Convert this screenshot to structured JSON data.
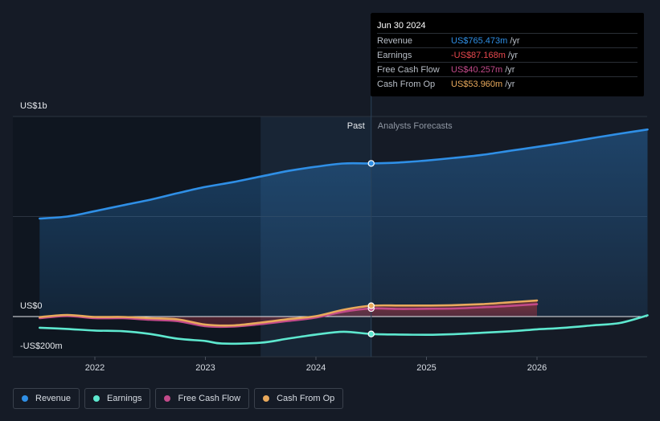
{
  "chart_data": {
    "type": "line",
    "y_tick_labels": [
      "US$1b",
      "US$0",
      "-US$200m"
    ],
    "x_tick_labels": [
      "2022",
      "2023",
      "2024",
      "2025",
      "2026"
    ],
    "regions": {
      "past_label": "Past",
      "forecast_label": "Analysts Forecasts",
      "divider_date": "Jun 30 2024"
    },
    "series": [
      {
        "name": "Revenue",
        "key": "revenue",
        "color": "#2f8fe6",
        "points": [
          [
            2021.5,
            490
          ],
          [
            2021.75,
            500
          ],
          [
            2022.0,
            527
          ],
          [
            2022.25,
            556
          ],
          [
            2022.5,
            584
          ],
          [
            2022.75,
            617
          ],
          [
            2023.0,
            648
          ],
          [
            2023.25,
            672
          ],
          [
            2023.5,
            700
          ],
          [
            2023.75,
            728
          ],
          [
            2024.0,
            749
          ],
          [
            2024.25,
            765
          ],
          [
            2024.5,
            765.473
          ],
          [
            2024.75,
            770
          ],
          [
            2025.0,
            780
          ],
          [
            2025.25,
            793
          ],
          [
            2025.5,
            808
          ],
          [
            2025.75,
            828
          ],
          [
            2026.0,
            848
          ],
          [
            2026.25,
            869
          ],
          [
            2026.5,
            892
          ],
          [
            2026.75,
            914
          ],
          [
            2027.0,
            935
          ]
        ]
      },
      {
        "name": "Earnings",
        "key": "earnings",
        "color": "#5ee8cf",
        "points": [
          [
            2021.5,
            -56
          ],
          [
            2021.75,
            -62
          ],
          [
            2022.0,
            -70
          ],
          [
            2022.25,
            -73
          ],
          [
            2022.5,
            -87
          ],
          [
            2022.75,
            -111
          ],
          [
            2023.0,
            -122
          ],
          [
            2023.15,
            -135
          ],
          [
            2023.5,
            -131
          ],
          [
            2023.75,
            -110
          ],
          [
            2024.0,
            -90
          ],
          [
            2024.25,
            -76
          ],
          [
            2024.5,
            -87.168
          ],
          [
            2024.75,
            -90
          ],
          [
            2025.0,
            -91
          ],
          [
            2025.25,
            -88
          ],
          [
            2025.5,
            -81
          ],
          [
            2025.75,
            -74
          ],
          [
            2026.0,
            -64
          ],
          [
            2026.25,
            -56
          ],
          [
            2026.5,
            -44
          ],
          [
            2026.75,
            -32
          ],
          [
            2027.0,
            6
          ]
        ]
      },
      {
        "name": "Free Cash Flow",
        "key": "fcf",
        "color": "#c24a8a",
        "points": [
          [
            2021.5,
            -8
          ],
          [
            2021.75,
            3
          ],
          [
            2022.0,
            -8
          ],
          [
            2022.25,
            -8
          ],
          [
            2022.5,
            -16
          ],
          [
            2022.75,
            -23
          ],
          [
            2023.0,
            -48
          ],
          [
            2023.25,
            -50
          ],
          [
            2023.5,
            -38
          ],
          [
            2023.75,
            -22
          ],
          [
            2024.0,
            -5
          ],
          [
            2024.25,
            24
          ],
          [
            2024.5,
            40.257
          ],
          [
            2024.75,
            38
          ],
          [
            2025.0,
            39
          ],
          [
            2025.25,
            40
          ],
          [
            2025.5,
            46
          ],
          [
            2025.75,
            53
          ],
          [
            2026.0,
            62
          ]
        ]
      },
      {
        "name": "Cash From Op",
        "key": "cfo",
        "color": "#e8a95c",
        "points": [
          [
            2021.5,
            -3
          ],
          [
            2021.75,
            8
          ],
          [
            2022.0,
            -2
          ],
          [
            2022.25,
            -2
          ],
          [
            2022.5,
            -8
          ],
          [
            2022.75,
            -14
          ],
          [
            2023.0,
            -40
          ],
          [
            2023.25,
            -44
          ],
          [
            2023.5,
            -30
          ],
          [
            2023.75,
            -13
          ],
          [
            2024.0,
            2
          ],
          [
            2024.25,
            34
          ],
          [
            2024.5,
            53.96
          ],
          [
            2024.75,
            55
          ],
          [
            2025.0,
            55
          ],
          [
            2025.25,
            57
          ],
          [
            2025.5,
            62
          ],
          [
            2025.75,
            71
          ],
          [
            2026.0,
            80
          ]
        ]
      }
    ],
    "ylim": [
      -200,
      1000
    ],
    "xlim": [
      2021.3,
      2027.0
    ],
    "grid": true,
    "legend_position": "bottom-left"
  },
  "tooltip": {
    "date": "Jun 30 2024",
    "unit": "/yr",
    "rows": [
      {
        "label": "Revenue",
        "value": "US$765.473m",
        "color": "#2f8fe6"
      },
      {
        "label": "Earnings",
        "value": "-US$87.168m",
        "color": "#e8484e"
      },
      {
        "label": "Free Cash Flow",
        "value": "US$40.257m",
        "color": "#c24a8a"
      },
      {
        "label": "Cash From Op",
        "value": "US$53.960m",
        "color": "#e8a95c"
      }
    ]
  },
  "legend": [
    {
      "label": "Revenue",
      "color": "#2f8fe6",
      "icon": "circle-dot"
    },
    {
      "label": "Earnings",
      "color": "#5ee8cf",
      "icon": "circle-dot"
    },
    {
      "label": "Free Cash Flow",
      "color": "#c24a8a",
      "icon": "circle-dot"
    },
    {
      "label": "Cash From Op",
      "color": "#e8a95c",
      "icon": "circle-dot"
    }
  ]
}
